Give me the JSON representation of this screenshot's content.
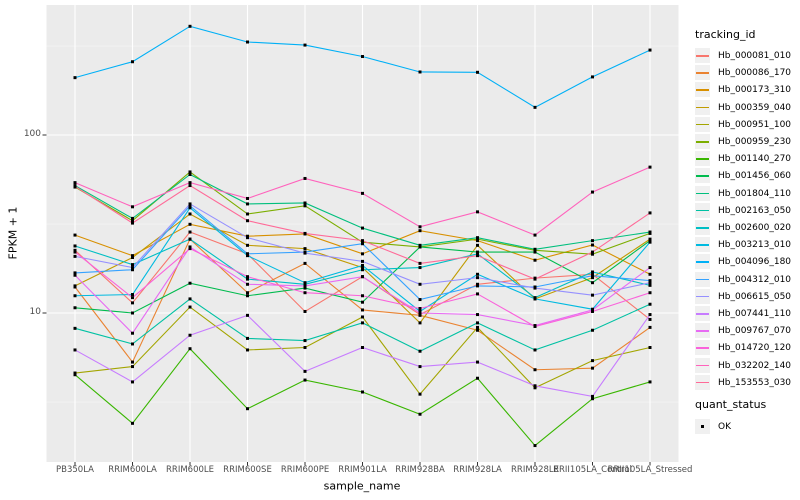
{
  "colors": {
    "panel_bg": "#EBEBEB",
    "grid_major": "#FFFFFF",
    "grid_minor": "#F6F6F6",
    "tick_mark": "#333333",
    "tick_label": "#4D4D4D",
    "point": "#000000",
    "legend_key_bg": "#F0F0F0"
  },
  "chart_data": {
    "type": "line",
    "title": "",
    "xlabel": "sample_name",
    "ylabel": "FPKM + 1",
    "x_scale": "discrete",
    "y_scale": "log10",
    "ylim": [
      1.45,
      530
    ],
    "grid": true,
    "legend_position": "right",
    "legend_title": "tracking_id",
    "quant_legend": {
      "title": "quant_status",
      "ok_label": "OK"
    },
    "y_major_ticks": {
      "labels": [
        "100",
        "10"
      ],
      "values": [
        100,
        10
      ]
    },
    "y_minor_gridlines": [
      316,
      31.6,
      3.16
    ],
    "point_marker": "square",
    "categories": [
      "PB350LA",
      "RRIM600LA",
      "RRIM600LE",
      "RRIM600SE",
      "RRIM600PE",
      "RRIM901LA",
      "RRIM928BA",
      "RRIM928LA",
      "RRIM928LE",
      "RRII105LA_Control",
      "RRII105LA_Stressed"
    ],
    "series": [
      {
        "name": "Hb_000081_010",
        "color": "#F8766D",
        "values": [
          22.5,
          11.4,
          28.5,
          21.5,
          10.2,
          16.0,
          9.8,
          14.5,
          15.7,
          16.5,
          9.2
        ]
      },
      {
        "name": "Hb_000086_170",
        "color": "#EA8331",
        "values": [
          14.0,
          5.3,
          26.0,
          13.0,
          19.0,
          10.4,
          9.7,
          8.0,
          4.8,
          4.9,
          8.3
        ]
      },
      {
        "name": "Hb_000173_310",
        "color": "#D89000",
        "values": [
          27.4,
          21.0,
          31.5,
          27.0,
          27.8,
          21.5,
          29.0,
          25.5,
          19.8,
          24.1,
          16.5
        ]
      },
      {
        "name": "Hb_000359_040",
        "color": "#C09B00",
        "values": [
          14.2,
          20.5,
          36.0,
          24.0,
          23.0,
          18.0,
          8.8,
          24.0,
          12.0,
          15.8,
          26.0
        ]
      },
      {
        "name": "Hb_000951_100",
        "color": "#A3A500",
        "values": [
          4.6,
          5.0,
          10.8,
          6.2,
          6.4,
          9.5,
          3.5,
          8.3,
          3.8,
          5.4,
          6.4
        ]
      },
      {
        "name": "Hb_000959_230",
        "color": "#7CAE00",
        "values": [
          51.0,
          33.0,
          62.0,
          36.0,
          40.0,
          25.0,
          23.5,
          26.0,
          22.5,
          21.4,
          28.0
        ]
      },
      {
        "name": "Hb_001140_270",
        "color": "#39B600",
        "values": [
          4.5,
          2.4,
          6.3,
          2.9,
          4.2,
          3.6,
          2.7,
          4.3,
          1.8,
          3.3,
          4.1
        ]
      },
      {
        "name": "Hb_001456_060",
        "color": "#00BB4E",
        "values": [
          10.7,
          10.0,
          14.7,
          12.5,
          13.8,
          11.5,
          23.5,
          22.0,
          22.0,
          14.8,
          25.5
        ]
      },
      {
        "name": "Hb_001804_110",
        "color": "#00BF7D",
        "values": [
          52.0,
          34.0,
          60.0,
          41.0,
          41.5,
          30.0,
          24.0,
          26.5,
          22.8,
          25.5,
          28.5
        ]
      },
      {
        "name": "Hb_002163_050",
        "color": "#00C1A3",
        "values": [
          8.2,
          6.7,
          12.0,
          7.2,
          7.0,
          8.8,
          6.1,
          8.8,
          6.2,
          8.0,
          11.2
        ]
      },
      {
        "name": "Hb_002600_020",
        "color": "#00BFC4",
        "values": [
          23.8,
          18.7,
          26.0,
          15.5,
          14.5,
          17.5,
          18.0,
          21.5,
          12.2,
          17.0,
          14.3
        ]
      },
      {
        "name": "Hb_003213_010",
        "color": "#00BAE0",
        "values": [
          12.5,
          12.7,
          39.0,
          21.0,
          14.8,
          18.5,
          10.2,
          16.5,
          12.0,
          10.5,
          25.0
        ]
      },
      {
        "name": "Hb_004096_180",
        "color": "#00B0F6",
        "values": [
          210,
          258,
          408,
          333,
          320,
          276,
          226,
          225,
          143,
          212,
          300
        ]
      },
      {
        "name": "Hb_004312_010",
        "color": "#35A2FF",
        "values": [
          16.8,
          17.5,
          40.0,
          21.5,
          22.0,
          24.5,
          11.9,
          14.2,
          14.0,
          16.2,
          15.2
        ]
      },
      {
        "name": "Hb_006615_050",
        "color": "#9590FF",
        "values": [
          20.8,
          18.0,
          41.0,
          26.5,
          21.7,
          19.5,
          14.5,
          15.8,
          13.8,
          12.6,
          14.8
        ]
      },
      {
        "name": "Hb_007441_110",
        "color": "#C77CFF",
        "values": [
          6.2,
          4.1,
          7.5,
          9.7,
          4.7,
          6.4,
          5.0,
          5.3,
          3.9,
          3.4,
          9.8
        ]
      },
      {
        "name": "Hb_009767_070",
        "color": "#E76BF3",
        "values": [
          16.3,
          7.7,
          23.5,
          14.5,
          14.2,
          16.0,
          10.0,
          9.8,
          8.5,
          10.4,
          18.0
        ]
      },
      {
        "name": "Hb_014720_120",
        "color": "#FA62DB",
        "values": [
          22.0,
          12.2,
          23.0,
          16.0,
          13.0,
          12.5,
          10.6,
          12.8,
          8.4,
          10.2,
          13.0
        ]
      },
      {
        "name": "Hb_032202_140",
        "color": "#FF62BC",
        "values": [
          54.0,
          39.5,
          54.0,
          44.0,
          57.0,
          47.0,
          30.5,
          37.0,
          27.4,
          47.8,
          66.0
        ]
      },
      {
        "name": "Hb_153553_030",
        "color": "#FF6A98",
        "values": [
          51.5,
          32.0,
          52.0,
          33.0,
          28.0,
          25.5,
          19.0,
          21.0,
          15.5,
          22.0,
          36.5
        ]
      }
    ]
  }
}
